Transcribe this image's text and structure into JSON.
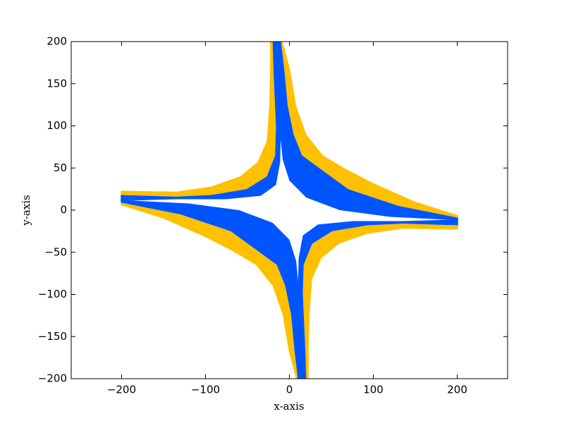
{
  "chart_data": {
    "type": "fill",
    "xlabel": "x-axis",
    "ylabel": "y-axis",
    "xlim": [
      -260,
      260
    ],
    "ylim": [
      -200,
      200
    ],
    "xticks": [
      {
        "value": -200,
        "label": "−200"
      },
      {
        "value": -100,
        "label": "−100"
      },
      0,
      100,
      200
    ],
    "yticks": [
      {
        "value": -200,
        "label": "−200"
      },
      {
        "value": -150,
        "label": "−150"
      },
      {
        "value": -100,
        "label": "−100"
      },
      {
        "value": -50,
        "label": "−50"
      },
      0,
      50,
      100,
      150,
      200
    ],
    "grid": false,
    "series": [
      {
        "color": "#ffc000",
        "x": [
          -201,
          -135,
          -93,
          -59,
          -38,
          -27,
          -24,
          -23,
          -23,
          -20,
          -19,
          -16,
          -17,
          -27,
          -51,
          -93,
          -135,
          -201
        ],
        "y": [
          23,
          22,
          28,
          40,
          57,
          82,
          124,
          166,
          200,
          200,
          166,
          99,
          65,
          40,
          25,
          18,
          16,
          18
        ]
      },
      {
        "color": "#ffc000",
        "x": [
          -8,
          1,
          8,
          20,
          40,
          67,
          100,
          150,
          201,
          201,
          130,
          70,
          37,
          15,
          5,
          -2,
          -6,
          -10
        ],
        "y": [
          200,
          166,
          124,
          90,
          65,
          49,
          32,
          10,
          -6,
          -9,
          5,
          25,
          49,
          65,
          90,
          124,
          166,
          200
        ]
      },
      {
        "color": "#ffc000",
        "x": [
          201,
          135,
          93,
          59,
          38,
          27,
          24,
          23,
          23,
          20,
          19,
          16,
          17,
          27,
          51,
          93,
          135,
          201
        ],
        "y": [
          -23,
          -22,
          -28,
          -40,
          -57,
          -82,
          -124,
          -166,
          -200,
          -200,
          -166,
          -99,
          -65,
          -40,
          -25,
          -18,
          -16,
          -18
        ]
      },
      {
        "color": "#ffc000",
        "x": [
          8,
          -1,
          -8,
          -20,
          -40,
          -67,
          -100,
          -150,
          -201,
          -201,
          -130,
          -70,
          -37,
          -15,
          -5,
          2,
          6,
          10
        ],
        "y": [
          -200,
          -166,
          -124,
          -90,
          -65,
          -49,
          -32,
          -10,
          6,
          9,
          -5,
          -25,
          -49,
          -65,
          -90,
          -124,
          -166,
          -200
        ]
      },
      {
        "color": "#0055ff",
        "x": [
          -201,
          -135,
          -93,
          -51,
          -27,
          -17,
          -16,
          -19,
          -20,
          -10,
          -11,
          -10,
          -11,
          -16,
          -34,
          -76,
          -135,
          -201
        ],
        "y": [
          18,
          16,
          18,
          25,
          40,
          65,
          99,
          166,
          200,
          200,
          166,
          99,
          57,
          30,
          17,
          13,
          13,
          11
        ]
      },
      {
        "color": "#0055ff",
        "x": [
          -10,
          -6,
          -2,
          5,
          15,
          37,
          70,
          130,
          201,
          201,
          120,
          60,
          20,
          0,
          -8,
          -11,
          -12,
          -13,
          -14
        ],
        "y": [
          200,
          166,
          124,
          90,
          65,
          49,
          25,
          5,
          -9,
          -12,
          -8,
          0,
          15,
          35,
          60,
          90,
          124,
          166,
          200
        ]
      },
      {
        "color": "#0055ff",
        "x": [
          201,
          135,
          93,
          51,
          27,
          17,
          16,
          19,
          20,
          10,
          11,
          10,
          11,
          16,
          34,
          76,
          135,
          201
        ],
        "y": [
          -18,
          -16,
          -18,
          -25,
          -40,
          -65,
          -99,
          -166,
          -200,
          -200,
          -166,
          -99,
          -57,
          -30,
          -17,
          -13,
          -13,
          -11
        ]
      },
      {
        "color": "#0055ff",
        "x": [
          10,
          6,
          2,
          -5,
          -15,
          -37,
          -70,
          -130,
          -201,
          -201,
          -120,
          -60,
          -20,
          0,
          8,
          11,
          12,
          13,
          14
        ],
        "y": [
          -200,
          -166,
          -124,
          -90,
          -65,
          -49,
          -25,
          -5,
          9,
          12,
          8,
          0,
          -15,
          -35,
          -60,
          -90,
          -124,
          -166,
          -200
        ]
      }
    ]
  }
}
